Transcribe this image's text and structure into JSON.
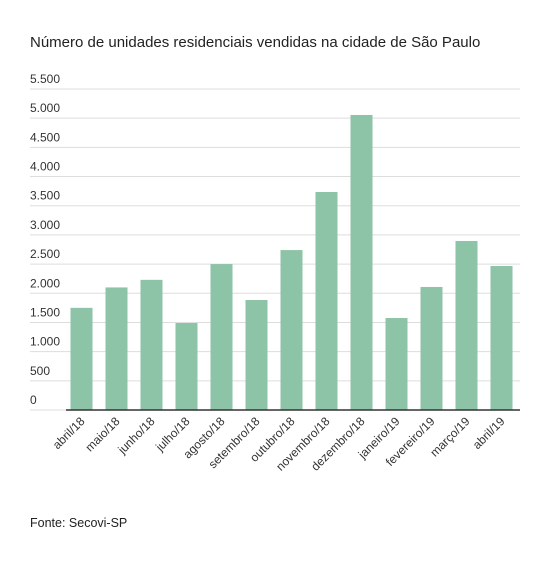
{
  "chart_data": {
    "type": "bar",
    "title": "Número de unidades residenciais vendidas na cidade de São Paulo",
    "source": "Fonte: Secovi-SP",
    "categories": [
      "abril/18",
      "maio/18",
      "junho/18",
      "julho/18",
      "agosto/18",
      "setembro/18",
      "outubro/18",
      "novembro/18",
      "dezembro/18",
      "janeiro/19",
      "fevereiro/19",
      "março/19",
      "abril/19"
    ],
    "values": [
      1750,
      2100,
      2230,
      1490,
      2500,
      1885,
      2740,
      3735,
      5055,
      1576,
      2108,
      2896,
      2467
    ],
    "color": "#8dc3a7",
    "ylim": [
      0,
      5500
    ],
    "yticks": [
      0,
      500,
      {
        "value": 1000,
        "label": "1.000"
      },
      {
        "value": 1500,
        "label": "1.500"
      },
      {
        "value": 2000,
        "label": "2.000"
      },
      {
        "value": 2500,
        "label": "2.500"
      },
      {
        "value": 3000,
        "label": "3.000"
      },
      {
        "value": 3500,
        "label": "3.500"
      },
      {
        "value": 4000,
        "label": "4.000"
      },
      {
        "value": 4500,
        "label": "4.500"
      },
      {
        "value": 5000,
        "label": "5.000"
      },
      {
        "value": 5500,
        "label": "5.500"
      }
    ],
    "grid": true
  }
}
